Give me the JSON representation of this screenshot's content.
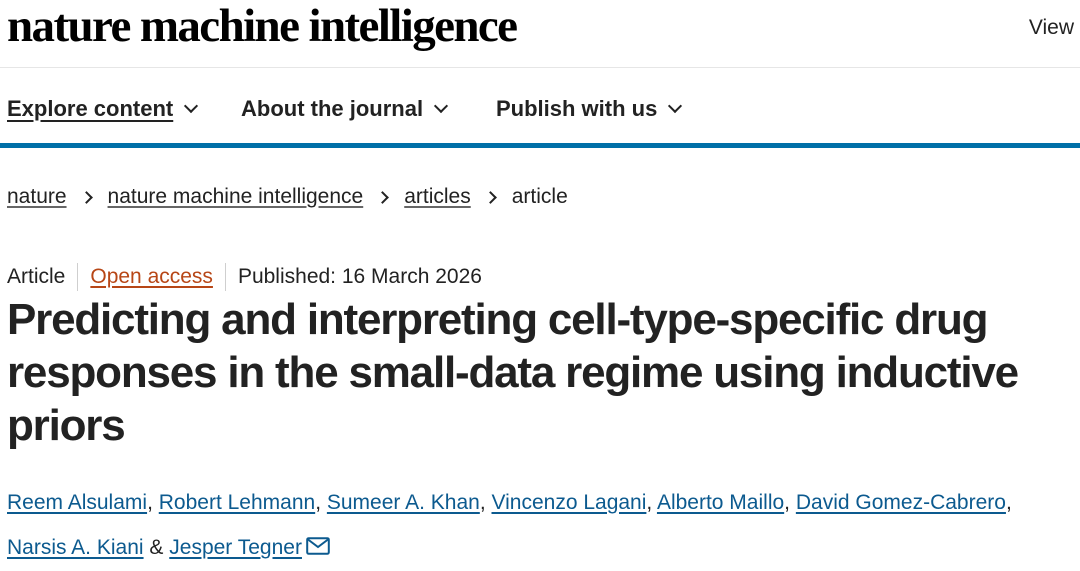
{
  "header": {
    "logo": "nature machine intelligence",
    "view_label": "View"
  },
  "nav": {
    "items": [
      {
        "label": "Explore content",
        "active": true
      },
      {
        "label": "About the journal",
        "active": false
      },
      {
        "label": "Publish with us",
        "active": false
      }
    ]
  },
  "breadcrumb": {
    "items": [
      "nature",
      "nature machine intelligence",
      "articles"
    ],
    "current": "article"
  },
  "article": {
    "type": "Article",
    "access": "Open access",
    "published": "Published: 16 March 2026",
    "title": "Predicting and interpreting cell-type-specific drug responses in the small-data regime using inductive priors",
    "authors": [
      "Reem Alsulami",
      "Robert Lehmann",
      "Sumeer A. Khan",
      "Vincenzo Lagani",
      "Alberto Maillo",
      "David Gomez-Cabrero",
      "Narsis A. Kiani",
      "Jesper Tegner"
    ],
    "author_separator": ",",
    "author_ampersand": "&",
    "icons": {
      "mail": "mail-icon"
    },
    "colors": {
      "link": "#0c5a8f",
      "open_access": "#b74616",
      "nav_border": "#0070a8"
    }
  }
}
